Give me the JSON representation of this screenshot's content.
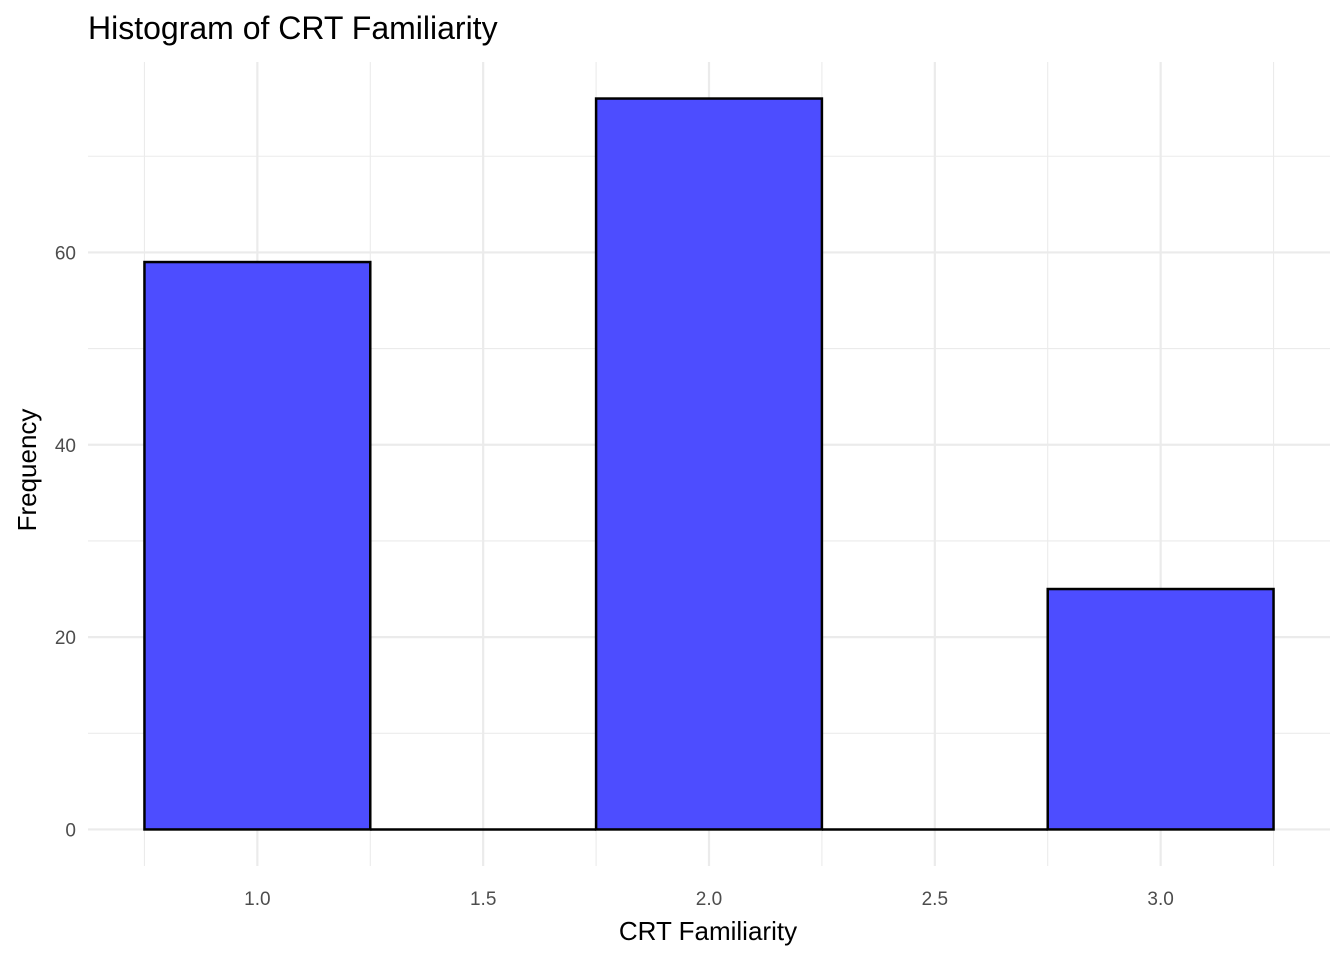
{
  "chart_data": {
    "type": "bar",
    "title": "Histogram of CRT Familiarity",
    "xlabel": "CRT Familiarity",
    "ylabel": "Frequency",
    "bins": [
      {
        "x_start": 0.75,
        "x_end": 1.25,
        "value": 59
      },
      {
        "x_start": 1.25,
        "x_end": 1.75,
        "value": 0
      },
      {
        "x_start": 1.75,
        "x_end": 2.25,
        "value": 76
      },
      {
        "x_start": 2.25,
        "x_end": 2.75,
        "value": 0
      },
      {
        "x_start": 2.75,
        "x_end": 3.25,
        "value": 25
      }
    ],
    "x_ticks": [
      "1.0",
      "1.5",
      "2.0",
      "2.5",
      "3.0"
    ],
    "x_tick_values": [
      1.0,
      1.5,
      2.0,
      2.5,
      3.0
    ],
    "y_ticks": [
      "0",
      "20",
      "40",
      "60"
    ],
    "y_tick_values": [
      0,
      20,
      40,
      60
    ],
    "xlim": [
      0.625,
      3.375
    ],
    "ylim": [
      -3.8,
      79.8
    ],
    "grid": true,
    "fill_color": "#4d4dff",
    "outline_color": "#000000"
  }
}
